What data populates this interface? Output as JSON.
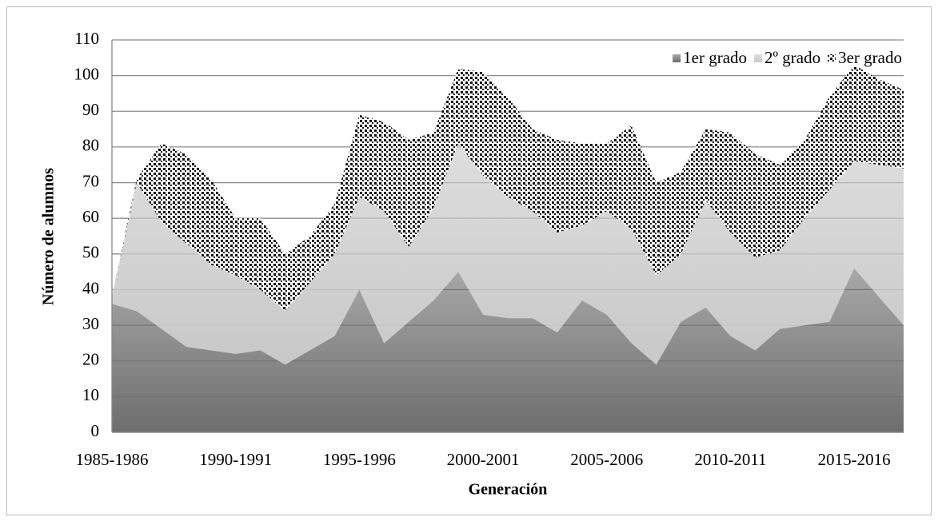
{
  "chart_data": {
    "type": "stacked-area",
    "xlabel": "Generación",
    "ylabel": "Número de alumnos",
    "categories": [
      "1985-1986",
      null,
      null,
      null,
      null,
      "1990-1991",
      null,
      null,
      null,
      null,
      "1995-1996",
      null,
      null,
      null,
      null,
      "2000-2001",
      null,
      null,
      null,
      null,
      "2005-2006",
      null,
      null,
      null,
      null,
      "2010-2011",
      null,
      null,
      null,
      null,
      "2015-2016",
      null,
      null
    ],
    "series": [
      {
        "name": "1er grado",
        "color": "#6e6e6e",
        "values": [
          36,
          34,
          29,
          24,
          23,
          22,
          23,
          19,
          23,
          27,
          40,
          25,
          31,
          37,
          45,
          33,
          32,
          32,
          28,
          37,
          33,
          25,
          19,
          31,
          35,
          27,
          23,
          29,
          30,
          31,
          46,
          38,
          30
        ]
      },
      {
        "name": "2º grado",
        "color": "#c8c8c8",
        "values": [
          2,
          36,
          30,
          29,
          24,
          22,
          17,
          15,
          19,
          23,
          26,
          37,
          21,
          26,
          36,
          39,
          34,
          30,
          28,
          21,
          29,
          32,
          25,
          19,
          30,
          29,
          26,
          22,
          30,
          37,
          30,
          37,
          44
        ]
      },
      {
        "name": "3er grado",
        "color": "#111111",
        "pattern": "checker",
        "values": [
          0,
          1,
          22,
          25,
          24,
          16,
          20,
          16,
          13,
          14,
          23,
          25,
          30,
          21,
          21,
          29,
          28,
          23,
          26,
          23,
          19,
          29,
          26,
          23,
          20,
          28,
          29,
          24,
          22,
          26,
          27,
          24,
          22
        ]
      }
    ],
    "ylim": [
      0,
      110
    ],
    "yticks": [
      0,
      10,
      20,
      30,
      40,
      50,
      60,
      70,
      80,
      90,
      100,
      110
    ],
    "grid": true,
    "legend": "top-right"
  }
}
